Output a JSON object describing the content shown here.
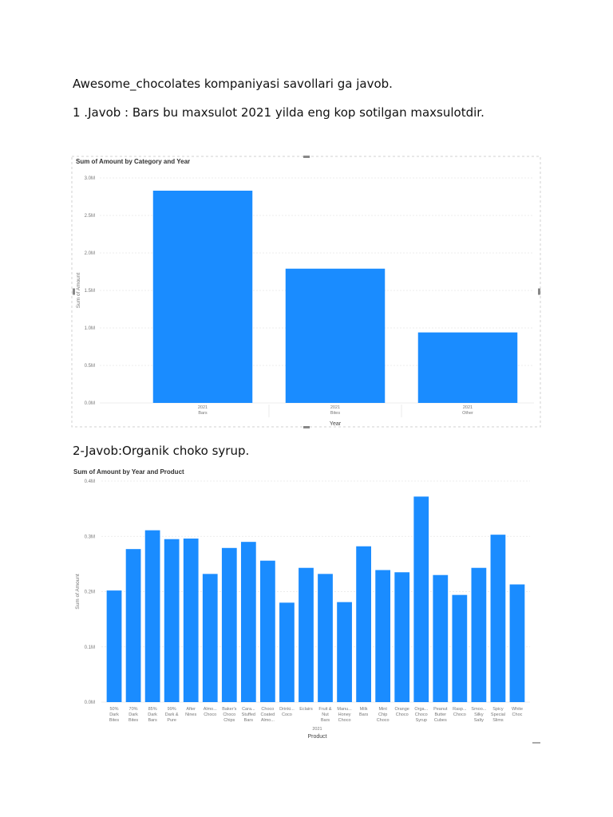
{
  "doc": {
    "title_line": "Awesome_chocolates kompaniyasi savollari ga javob.",
    "answer1": "1 .Javob : Bars bu maxsulot 2021 yilda eng kop sotilgan maxsulotdir.",
    "answer2": "2-Javob:Organik choko syrup."
  },
  "colors": {
    "bar": "#1a8cff",
    "grid": "#e6e6e6",
    "axis_text": "#777777",
    "title_text": "#333333"
  },
  "chart_data": [
    {
      "type": "bar",
      "title": "Sum of Amount by Category and Year",
      "xlabel": "Year",
      "ylabel": "Sum of Amount",
      "ylim": [
        0,
        3.0
      ],
      "yticks": [
        "0.0M",
        "0.5M",
        "1.0M",
        "1.5M",
        "2.0M",
        "2.5M",
        "3.0M"
      ],
      "categories": [
        {
          "year": "2021",
          "category": "Bars"
        },
        {
          "year": "2021",
          "category": "Bites"
        },
        {
          "year": "2021",
          "category": "Other"
        }
      ],
      "values": [
        2.83,
        1.79,
        0.94
      ],
      "unit": "M"
    },
    {
      "type": "bar",
      "title": "Sum of Amount by Year and Product",
      "xlabel": "Product",
      "ylabel": "Sum of Amount",
      "group_label": "2021",
      "ylim": [
        0,
        0.4
      ],
      "yticks": [
        "0.0M",
        "0.1M",
        "0.2M",
        "0.3M",
        "0.4M"
      ],
      "categories": [
        [
          "50%",
          "Dark",
          "Bites"
        ],
        [
          "70%",
          "Dark",
          "Bites"
        ],
        [
          "85%",
          "Dark",
          "Bars"
        ],
        [
          "99%",
          "Dark &",
          "Pure"
        ],
        [
          "After",
          "Nines"
        ],
        [
          "Almo...",
          "Choco"
        ],
        [
          "Baker's",
          "Choco",
          "Chips"
        ],
        [
          "Cara...",
          "Stuffed",
          "Bars"
        ],
        [
          "Choco",
          "Coated",
          "Almo..."
        ],
        [
          "Drinki...",
          "Coco"
        ],
        [
          "Eclairs"
        ],
        [
          "Fruit &",
          "Nut",
          "Bars"
        ],
        [
          "Manu...",
          "Honey",
          "Choco"
        ],
        [
          "Milk",
          "Bars"
        ],
        [
          "Mint",
          "Chip",
          "Choco"
        ],
        [
          "Orange",
          "Choco"
        ],
        [
          "Orga...",
          "Choco",
          "Syrup"
        ],
        [
          "Peanut",
          "Butter",
          "Cubes"
        ],
        [
          "Rasp...",
          "Choco"
        ],
        [
          "Smoo...",
          "Silky",
          "Salty"
        ],
        [
          "Spicy",
          "Special",
          "Slims"
        ],
        [
          "White",
          "Choc"
        ]
      ],
      "values": [
        0.202,
        0.277,
        0.311,
        0.295,
        0.296,
        0.232,
        0.279,
        0.29,
        0.256,
        0.18,
        0.243,
        0.232,
        0.181,
        0.282,
        0.239,
        0.235,
        0.372,
        0.23,
        0.194,
        0.243,
        0.303,
        0.213
      ],
      "unit": "M"
    }
  ]
}
